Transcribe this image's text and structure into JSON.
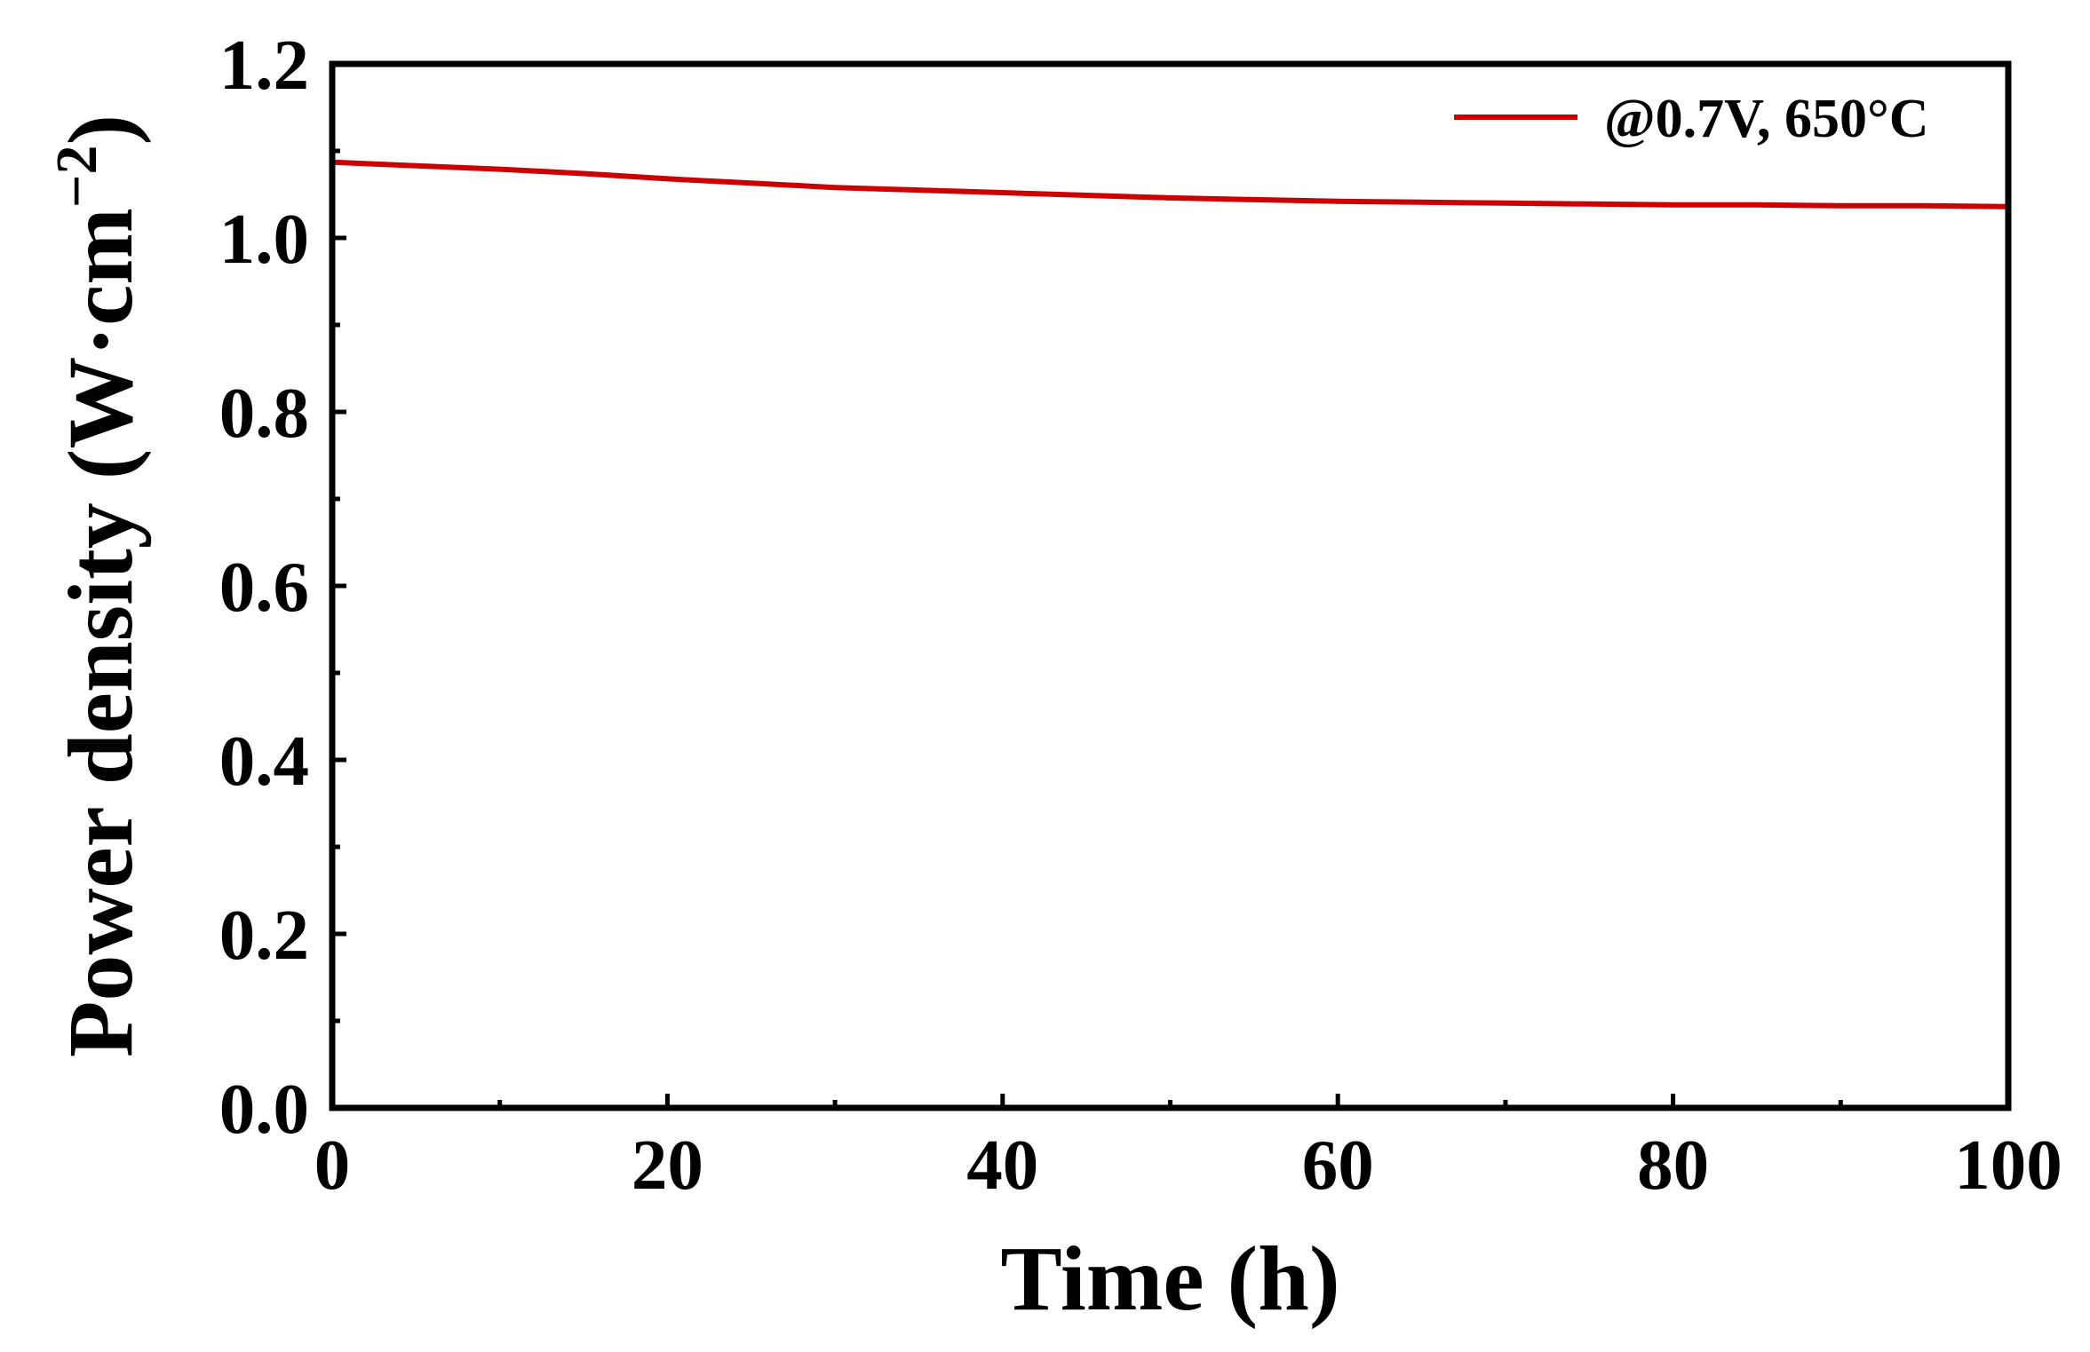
{
  "chart_data": {
    "type": "line",
    "title": "",
    "xlabel": "Time (h)",
    "ylabel_main": "Power density (W·cm",
    "ylabel_sup": "−2",
    "ylabel_close": ")",
    "xlim": [
      0,
      100
    ],
    "ylim": [
      0,
      1.2
    ],
    "x_ticks": [
      "0",
      "20",
      "40",
      "60",
      "80",
      "100"
    ],
    "x_tick_values": [
      0,
      20,
      40,
      60,
      80,
      100
    ],
    "y_ticks": [
      "0.0",
      "0.2",
      "0.4",
      "0.6",
      "0.8",
      "1.0",
      "1.2"
    ],
    "y_tick_values": [
      0,
      0.2,
      0.4,
      0.6,
      0.8,
      1.0,
      1.2
    ],
    "grid": false,
    "legend_position": "top-right",
    "series": [
      {
        "name": "@0.7V, 650°C",
        "color": "#cc0000",
        "x": [
          0,
          5,
          10,
          15,
          20,
          25,
          30,
          35,
          40,
          45,
          50,
          55,
          60,
          65,
          70,
          75,
          80,
          85,
          90,
          95,
          100
        ],
        "y": [
          1.087,
          1.083,
          1.079,
          1.074,
          1.068,
          1.063,
          1.058,
          1.055,
          1.052,
          1.049,
          1.046,
          1.044,
          1.042,
          1.041,
          1.04,
          1.039,
          1.038,
          1.038,
          1.037,
          1.037,
          1.036
        ]
      }
    ]
  }
}
